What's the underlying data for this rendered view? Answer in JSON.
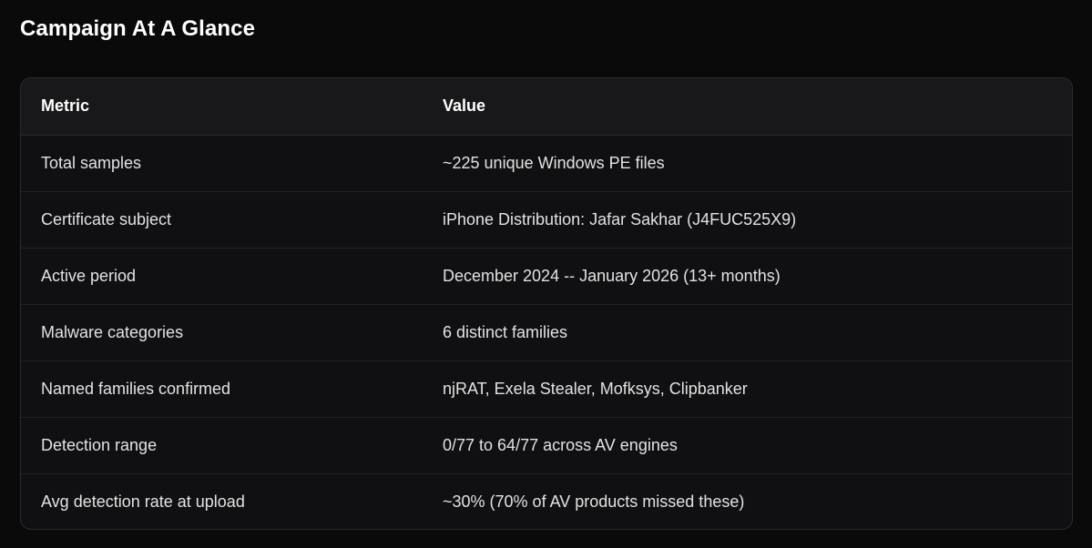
{
  "page": {
    "title": "Campaign At A Glance"
  },
  "table": {
    "headers": [
      "Metric",
      "Value"
    ],
    "rows": [
      [
        "Total samples",
        "~225 unique Windows PE files"
      ],
      [
        "Certificate subject",
        "iPhone Distribution: Jafar Sakhar (J4FUC525X9)"
      ],
      [
        "Active period",
        "December 2024 -- January 2026 (13+ months)"
      ],
      [
        "Malware categories",
        "6 distinct families"
      ],
      [
        "Named families confirmed",
        "njRAT, Exela Stealer, Mofksys, Clipbanker"
      ],
      [
        "Detection range",
        "0/77 to 64/77 across AV engines"
      ],
      [
        "Avg detection rate at upload",
        "~30% (70% of AV products missed these)"
      ]
    ]
  },
  "colors": {
    "background": "#0a0a0b",
    "card": "#101012",
    "header_row": "#18181a",
    "border": "#2c2c2f",
    "text": "#e2e2e2",
    "heading": "#ffffff"
  }
}
